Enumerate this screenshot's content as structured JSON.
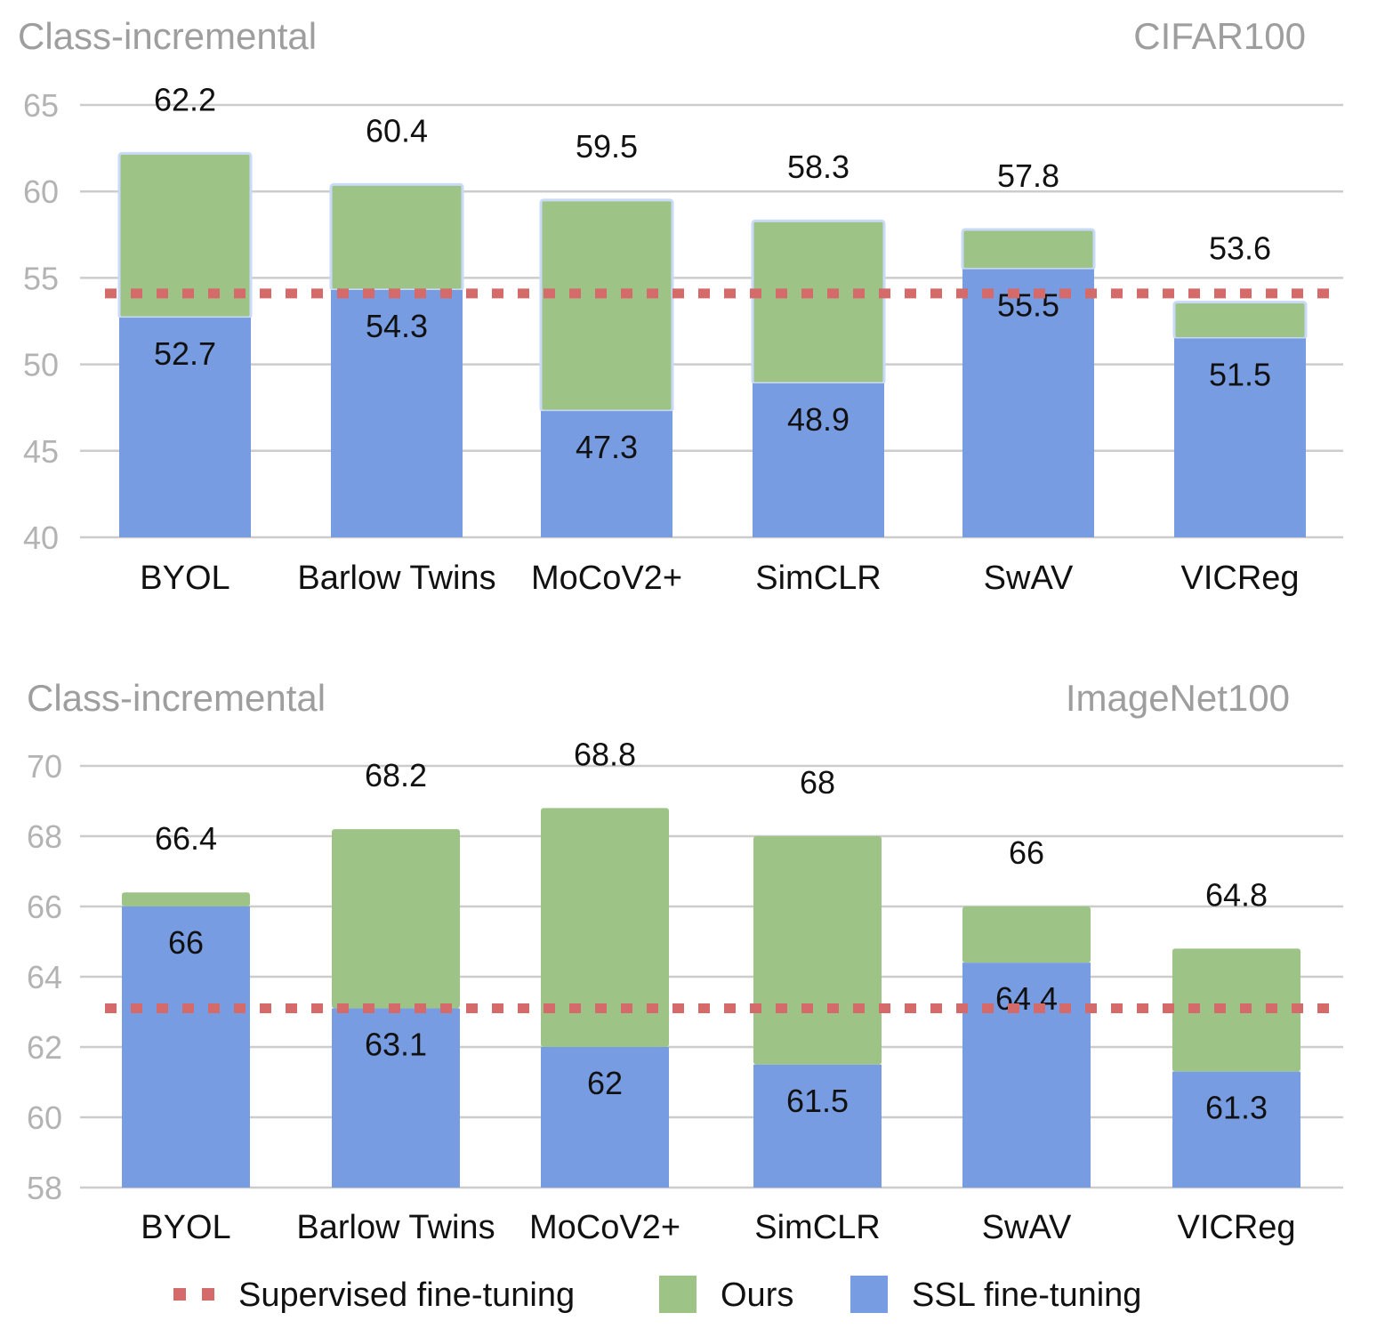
{
  "colors": {
    "ours": "#9dc386",
    "ssl": "#779ce1",
    "supervised": "#d46a6a",
    "grid": "#cccccc",
    "bar_edge": "#c9daf8"
  },
  "legend": {
    "supervised_label": "Supervised fine-tuning",
    "ours_label": "Ours",
    "ssl_label": "SSL fine-tuning"
  },
  "chart_data": [
    {
      "type": "bar",
      "stacked": true,
      "title": "Class-incremental",
      "subtitle": "CIFAR100",
      "categories": [
        "BYOL",
        "Barlow Twins",
        "MoCoV2+",
        "SimCLR",
        "SwAV",
        "VICReg"
      ],
      "series": [
        {
          "name": "SSL fine-tuning",
          "values": [
            52.7,
            54.3,
            47.3,
            48.9,
            55.5,
            51.5
          ]
        },
        {
          "name": "Ours",
          "totals": [
            62.2,
            60.4,
            59.5,
            58.3,
            57.8,
            53.6
          ]
        }
      ],
      "reference_line": {
        "name": "Supervised fine-tuning",
        "value": 54.1
      },
      "ylim": [
        40,
        65
      ],
      "yticks": [
        40,
        45,
        50,
        55,
        60,
        65
      ],
      "grid": true
    },
    {
      "type": "bar",
      "stacked": true,
      "title": "Class-incremental",
      "subtitle": "ImageNet100",
      "categories": [
        "BYOL",
        "Barlow Twins",
        "MoCoV2+",
        "SimCLR",
        "SwAV",
        "VICReg"
      ],
      "series": [
        {
          "name": "SSL fine-tuning",
          "values": [
            66,
            63.1,
            62,
            61.5,
            64.4,
            61.3
          ]
        },
        {
          "name": "Ours",
          "totals": [
            66.4,
            68.2,
            68.8,
            68,
            66,
            64.8
          ]
        }
      ],
      "reference_line": {
        "name": "Supervised fine-tuning",
        "value": 63.1
      },
      "ylim": [
        58,
        70
      ],
      "yticks": [
        58,
        60,
        62,
        64,
        66,
        68,
        70
      ],
      "grid": true
    }
  ]
}
